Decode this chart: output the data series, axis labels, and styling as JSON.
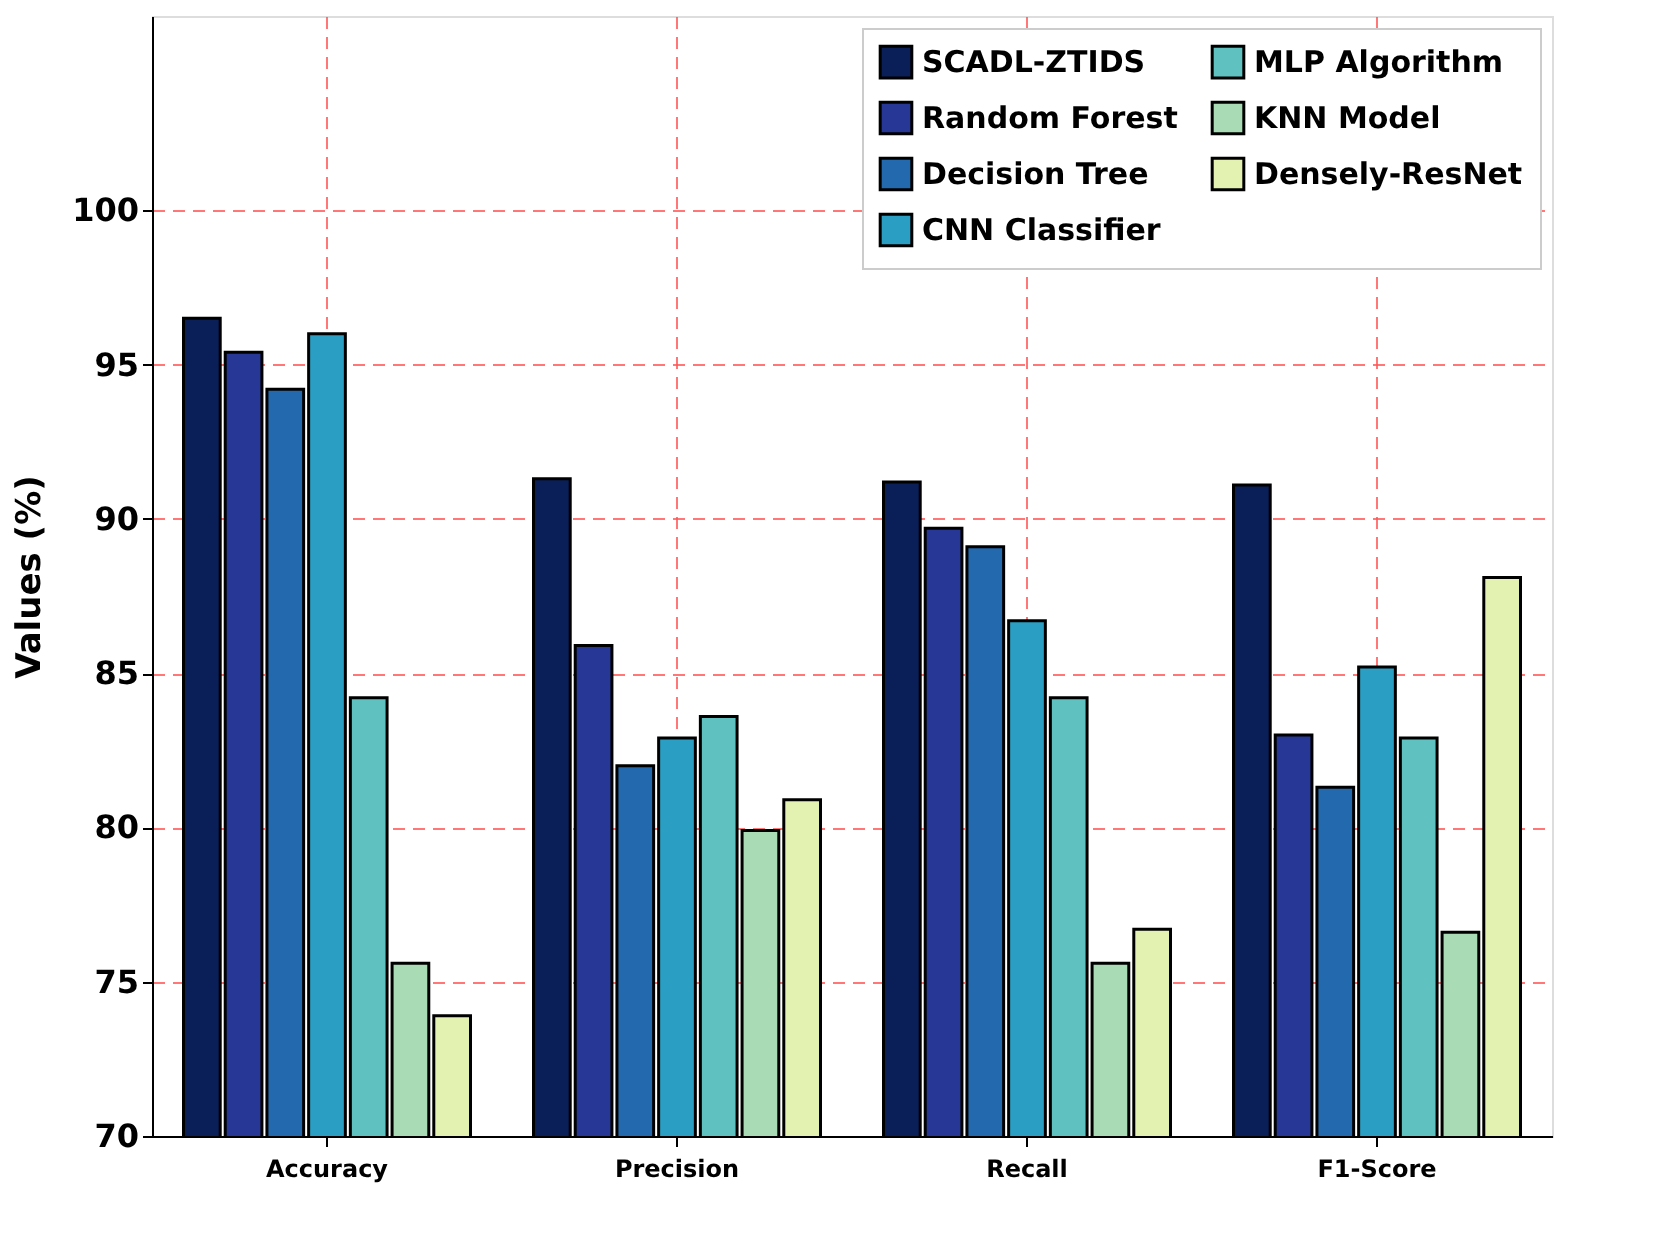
{
  "chart_data": {
    "type": "bar",
    "ylabel": "Values (%)",
    "categories": [
      "Accuracy",
      "Precision",
      "Recall",
      "F1-Score"
    ],
    "series": [
      {
        "name": "SCADL-ZTIDS",
        "color": "#0a1f58",
        "values": [
          96.5,
          91.3,
          91.2,
          91.1
        ]
      },
      {
        "name": "Random Forest",
        "color": "#263795",
        "values": [
          95.4,
          85.9,
          89.7,
          83.0
        ]
      },
      {
        "name": "Decision Tree",
        "color": "#2369ae",
        "values": [
          94.2,
          82.0,
          89.1,
          81.3
        ]
      },
      {
        "name": "CNN Classifier",
        "color": "#2a9fc3",
        "values": [
          96.0,
          82.9,
          86.7,
          85.2
        ]
      },
      {
        "name": "MLP Algorithm",
        "color": "#5fc2c0",
        "values": [
          84.2,
          83.6,
          84.2,
          82.9
        ]
      },
      {
        "name": "KNN Model",
        "color": "#a9dcb5",
        "values": [
          75.6,
          79.9,
          75.6,
          76.6
        ]
      },
      {
        "name": "Densely-ResNet",
        "color": "#e3f2b0",
        "values": [
          73.9,
          80.9,
          76.7,
          88.1
        ]
      }
    ],
    "ylim": [
      70,
      106.3
    ],
    "yticks": [
      70,
      75,
      80,
      85,
      90,
      95,
      100
    ],
    "grid": true,
    "legend": "top right"
  }
}
